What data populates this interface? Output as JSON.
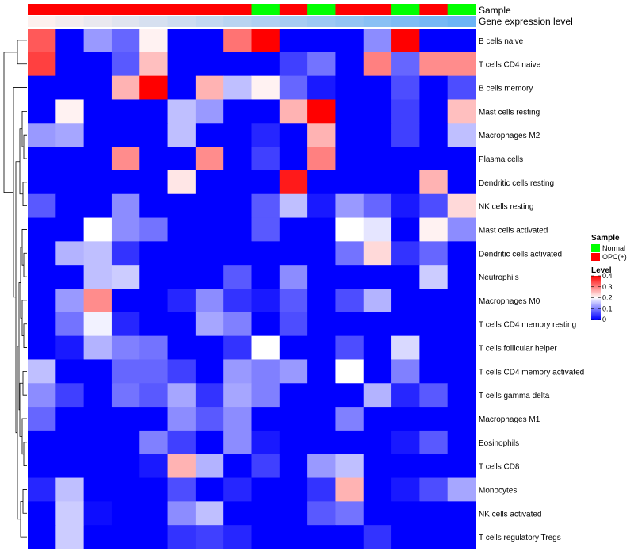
{
  "chart_data": {
    "type": "heatmap",
    "annotations": {
      "sample": {
        "label": "Sample",
        "values": [
          "OPC(+)",
          "OPC(+)",
          "OPC(+)",
          "OPC(+)",
          "OPC(+)",
          "OPC(+)",
          "OPC(+)",
          "OPC(+)",
          "Normal",
          "OPC(+)",
          "Normal",
          "OPC(+)",
          "OPC(+)",
          "Normal",
          "OPC(+)",
          "Normal"
        ]
      },
      "gene_expression": {
        "label": "Gene expression level",
        "values": [
          0.0,
          0.07,
          0.13,
          0.2,
          0.27,
          0.33,
          0.4,
          0.47,
          0.53,
          0.6,
          0.67,
          0.73,
          0.8,
          0.87,
          0.93,
          1.0
        ],
        "low_color": "#fdf0ee",
        "high_color": "#6cb4f5"
      }
    },
    "rows": [
      "B cells naive",
      "T cells CD4 naive",
      "B cells memory",
      "Mast cells resting",
      "Macrophages M2",
      "Plasma cells",
      "Dendritic cells resting",
      "NK cells resting",
      "Mast cells activated",
      "Dendritic cells activated",
      "Neutrophils",
      "Macrophages M0",
      "T cells CD4 memory resting",
      "T cells follicular helper",
      "T cells CD4 memory activated",
      "T cells gamma delta",
      "Macrophages M1",
      "Eosinophils",
      "T cells CD8",
      "Monocytes",
      "NK cells activated",
      "T cells regulatory  Tregs"
    ],
    "values": [
      [
        0.33,
        0.0,
        0.12,
        0.08,
        0.21,
        0.0,
        0.0,
        0.31,
        0.4,
        0.0,
        0.0,
        0.0,
        0.11,
        0.4,
        0.0,
        0.0
      ],
      [
        0.35,
        0.0,
        0.0,
        0.07,
        0.25,
        0.0,
        0.0,
        0.0,
        0.0,
        0.05,
        0.09,
        0.0,
        0.3,
        0.08,
        0.29,
        0.29
      ],
      [
        0.0,
        0.0,
        0.0,
        0.26,
        0.4,
        0.0,
        0.26,
        0.15,
        0.21,
        0.08,
        0.02,
        0.0,
        0.0,
        0.06,
        0.0,
        0.06
      ],
      [
        0.0,
        0.21,
        0.0,
        0.0,
        0.0,
        0.15,
        0.12,
        0.0,
        0.0,
        0.26,
        0.4,
        0.0,
        0.0,
        0.05,
        0.0,
        0.25
      ],
      [
        0.12,
        0.13,
        0.0,
        0.0,
        0.0,
        0.15,
        0.0,
        0.0,
        0.03,
        0.0,
        0.26,
        0.0,
        0.0,
        0.05,
        0.0,
        0.15
      ],
      [
        0.0,
        0.0,
        0.0,
        0.29,
        0.0,
        0.0,
        0.29,
        0.0,
        0.05,
        0.0,
        0.3,
        0.0,
        0.0,
        0.0,
        0.0,
        0.0
      ],
      [
        0.0,
        0.0,
        0.0,
        0.0,
        0.0,
        0.22,
        0.0,
        0.0,
        0.0,
        0.38,
        0.0,
        0.0,
        0.0,
        0.0,
        0.26,
        0.0
      ],
      [
        0.07,
        0.0,
        0.0,
        0.11,
        0.0,
        0.0,
        0.0,
        0.0,
        0.07,
        0.15,
        0.02,
        0.12,
        0.08,
        0.02,
        0.06,
        0.23
      ],
      [
        0.0,
        0.0,
        0.2,
        0.11,
        0.09,
        0.0,
        0.0,
        0.0,
        0.07,
        0.0,
        0.0,
        0.2,
        0.18,
        0.0,
        0.21,
        0.11
      ],
      [
        0.0,
        0.14,
        0.15,
        0.04,
        0.0,
        0.0,
        0.0,
        0.0,
        0.0,
        0.0,
        0.0,
        0.09,
        0.23,
        0.04,
        0.08,
        0.0
      ],
      [
        0.0,
        0.0,
        0.15,
        0.16,
        0.0,
        0.0,
        0.0,
        0.07,
        0.0,
        0.11,
        0.0,
        0.0,
        0.0,
        0.0,
        0.16,
        0.0
      ],
      [
        0.0,
        0.12,
        0.29,
        0.0,
        0.0,
        0.03,
        0.11,
        0.04,
        0.02,
        0.07,
        0.0,
        0.06,
        0.14,
        0.0,
        0.0,
        0.0
      ],
      [
        0.0,
        0.09,
        0.19,
        0.03,
        0.0,
        0.0,
        0.13,
        0.1,
        0.0,
        0.06,
        0.0,
        0.0,
        0.0,
        0.0,
        0.0,
        0.0
      ],
      [
        0.0,
        0.02,
        0.14,
        0.1,
        0.09,
        0.0,
        0.0,
        0.04,
        0.2,
        0.0,
        0.0,
        0.06,
        0.0,
        0.17,
        0.0,
        0.0
      ],
      [
        0.15,
        0.0,
        0.0,
        0.08,
        0.08,
        0.05,
        0.0,
        0.12,
        0.1,
        0.12,
        0.0,
        0.2,
        0.0,
        0.1,
        0.0,
        0.0
      ],
      [
        0.11,
        0.05,
        0.0,
        0.09,
        0.07,
        0.13,
        0.04,
        0.13,
        0.1,
        0.0,
        0.0,
        0.0,
        0.14,
        0.03,
        0.07,
        0.0
      ],
      [
        0.08,
        0.0,
        0.0,
        0.0,
        0.0,
        0.11,
        0.07,
        0.11,
        0.0,
        0.0,
        0.0,
        0.1,
        0.0,
        0.0,
        0.0,
        0.0
      ],
      [
        0.0,
        0.0,
        0.0,
        0.0,
        0.1,
        0.05,
        0.0,
        0.11,
        0.02,
        0.0,
        0.0,
        0.0,
        0.0,
        0.02,
        0.07,
        0.0
      ],
      [
        0.0,
        0.0,
        0.0,
        0.0,
        0.02,
        0.26,
        0.14,
        0.0,
        0.05,
        0.0,
        0.12,
        0.15,
        0.0,
        0.0,
        0.0,
        0.0
      ],
      [
        0.03,
        0.15,
        0.0,
        0.0,
        0.0,
        0.06,
        0.0,
        0.03,
        0.0,
        0.0,
        0.04,
        0.26,
        0.0,
        0.02,
        0.06,
        0.13
      ],
      [
        0.0,
        0.16,
        0.01,
        0.0,
        0.0,
        0.11,
        0.15,
        0.0,
        0.0,
        0.0,
        0.07,
        0.09,
        0.0,
        0.0,
        0.0,
        0.0
      ],
      [
        0.0,
        0.16,
        0.0,
        0.0,
        0.0,
        0.04,
        0.05,
        0.03,
        0.0,
        0.0,
        0.0,
        0.0,
        0.04,
        0.0,
        0.0,
        0.0
      ]
    ],
    "color_scale": {
      "min": 0,
      "max": 0.4,
      "stops": [
        {
          "v": 0.0,
          "color": "#0000ff"
        },
        {
          "v": 0.2,
          "color": "#ffffff"
        },
        {
          "v": 0.4,
          "color": "#ff0000"
        }
      ]
    },
    "legends": {
      "sample": {
        "title": "Sample",
        "items": [
          {
            "label": "Normal",
            "color": "#00ff00"
          },
          {
            "label": "OPC(+)",
            "color": "#ff0000"
          }
        ]
      },
      "level": {
        "title": "Level",
        "ticks": [
          0.4,
          0.3,
          0.2,
          0.1,
          0
        ]
      }
    },
    "dendrogram": "rows, left side"
  }
}
